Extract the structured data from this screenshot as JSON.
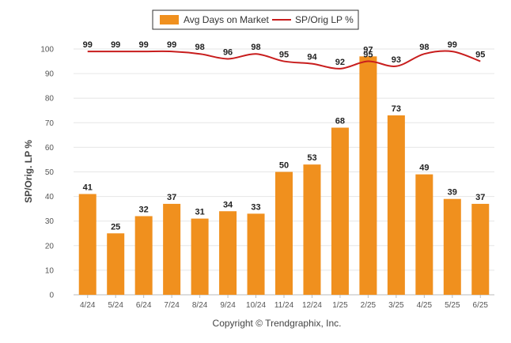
{
  "chart_data": {
    "type": "bar",
    "categories": [
      "4/24",
      "5/24",
      "6/24",
      "7/24",
      "8/24",
      "9/24",
      "10/24",
      "11/24",
      "12/24",
      "1/25",
      "2/25",
      "3/25",
      "4/25",
      "5/25",
      "6/25"
    ],
    "series": [
      {
        "name": "Avg Days on Market",
        "type": "bar",
        "color": "#f0901e",
        "values": [
          41,
          25,
          32,
          37,
          31,
          34,
          33,
          50,
          53,
          68,
          97,
          73,
          49,
          39,
          37
        ]
      },
      {
        "name": "SP/Orig LP %",
        "type": "line",
        "color": "#c81d1d",
        "values": [
          99,
          99,
          99,
          99,
          98,
          96,
          98,
          95,
          94,
          92,
          95,
          93,
          98,
          99,
          95
        ]
      }
    ],
    "ylabel": "SP/Orig. LP %",
    "xlabel": "",
    "ylim": [
      0,
      100
    ],
    "yticks": [
      0,
      10,
      20,
      30,
      40,
      50,
      60,
      70,
      80,
      90,
      100
    ],
    "grid": true,
    "legend_position": "top-center",
    "footer": "Copyright © Trendgraphix, Inc."
  }
}
